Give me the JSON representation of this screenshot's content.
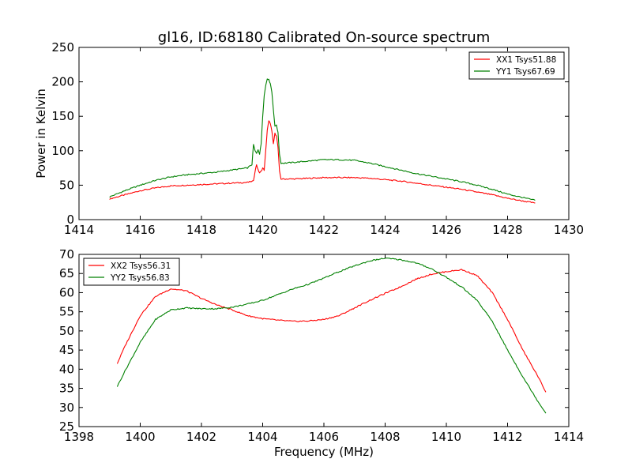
{
  "chart_data": [
    {
      "type": "line",
      "title": "gl16, ID:68180 Calibrated On-source spectrum",
      "xlabel": "",
      "ylabel": "Power in Kelvin",
      "xlim": [
        1414,
        1430
      ],
      "ylim": [
        0,
        250
      ],
      "xticks": [
        "1414",
        "1416",
        "1418",
        "1420",
        "1422",
        "1424",
        "1426",
        "1428",
        "1430"
      ],
      "yticks": [
        "0",
        "50",
        "100",
        "150",
        "200",
        "250"
      ],
      "legend_position": "top-right",
      "grid": false,
      "series": [
        {
          "name": "XX1 Tsys51.88",
          "color": "#ff0000",
          "x": [
            1415.0,
            1415.5,
            1416.0,
            1416.5,
            1417.0,
            1417.5,
            1418.0,
            1418.5,
            1419.0,
            1419.5,
            1419.7,
            1419.75,
            1419.8,
            1419.85,
            1419.9,
            1419.95,
            1420.0,
            1420.05,
            1420.1,
            1420.15,
            1420.2,
            1420.25,
            1420.3,
            1420.35,
            1420.4,
            1420.45,
            1420.5,
            1420.55,
            1420.6,
            1420.7,
            1421.0,
            1421.5,
            1422.0,
            1422.5,
            1423.0,
            1423.5,
            1424.0,
            1424.5,
            1425.0,
            1425.5,
            1426.0,
            1426.5,
            1427.0,
            1427.5,
            1428.0,
            1428.5,
            1428.9
          ],
          "values": [
            30,
            36,
            42,
            46,
            49,
            50,
            51,
            52,
            53,
            54,
            56,
            70,
            80,
            72,
            68,
            70,
            75,
            72,
            100,
            130,
            143,
            140,
            128,
            110,
            125,
            122,
            105,
            70,
            59,
            59,
            59,
            60,
            61,
            61,
            61,
            60,
            58,
            56,
            53,
            50,
            47,
            44,
            40,
            36,
            31,
            27,
            24
          ]
        },
        {
          "name": "YY1 Tsys67.69",
          "color": "#008000",
          "x": [
            1415.0,
            1415.5,
            1416.0,
            1416.5,
            1417.0,
            1417.5,
            1418.0,
            1418.5,
            1419.0,
            1419.5,
            1419.65,
            1419.7,
            1419.75,
            1419.8,
            1419.85,
            1419.9,
            1419.95,
            1420.0,
            1420.05,
            1420.1,
            1420.15,
            1420.2,
            1420.25,
            1420.3,
            1420.35,
            1420.4,
            1420.45,
            1420.5,
            1420.55,
            1420.6,
            1420.7,
            1421.0,
            1421.5,
            1422.0,
            1422.5,
            1423.0,
            1423.5,
            1424.0,
            1424.5,
            1425.0,
            1425.5,
            1426.0,
            1426.5,
            1427.0,
            1427.5,
            1428.0,
            1428.5,
            1428.9
          ],
          "values": [
            33,
            42,
            50,
            57,
            62,
            65,
            67,
            69,
            72,
            75,
            80,
            109,
            100,
            96,
            102,
            95,
            110,
            150,
            180,
            195,
            205,
            203,
            198,
            185,
            160,
            135,
            138,
            126,
            95,
            82,
            82,
            83,
            85,
            87,
            87,
            86,
            82,
            77,
            72,
            67,
            63,
            59,
            55,
            50,
            44,
            37,
            32,
            28
          ]
        }
      ]
    },
    {
      "type": "line",
      "title": "",
      "xlabel": "Frequency (MHz)",
      "ylabel": "",
      "xlim": [
        1398,
        1414
      ],
      "ylim": [
        25,
        70
      ],
      "xticks": [
        "1398",
        "1400",
        "1402",
        "1404",
        "1406",
        "1408",
        "1410",
        "1412",
        "1414"
      ],
      "yticks": [
        "25",
        "30",
        "35",
        "40",
        "45",
        "50",
        "55",
        "60",
        "65",
        "70"
      ],
      "legend_position": "top-left",
      "grid": false,
      "series": [
        {
          "name": "XX2 Tsys56.31",
          "color": "#ff0000",
          "x": [
            1399.25,
            1399.5,
            1400.0,
            1400.5,
            1401.0,
            1401.5,
            1402.0,
            1402.5,
            1403.0,
            1403.5,
            1404.0,
            1404.5,
            1405.0,
            1405.5,
            1406.0,
            1406.5,
            1407.0,
            1407.5,
            1408.0,
            1408.5,
            1409.0,
            1409.5,
            1410.0,
            1410.5,
            1411.0,
            1411.5,
            1412.0,
            1412.5,
            1413.0,
            1413.25
          ],
          "values": [
            41.5,
            46.0,
            54.0,
            59.0,
            61.0,
            60.5,
            58.5,
            56.8,
            55.5,
            54.0,
            53.2,
            52.8,
            52.5,
            52.6,
            53.0,
            54.0,
            56.0,
            58.0,
            59.8,
            61.5,
            63.5,
            64.8,
            65.5,
            66.0,
            64.5,
            60.0,
            53.0,
            45.0,
            38.0,
            34.0
          ]
        },
        {
          "name": "YY2 Tsys56.83",
          "color": "#008000",
          "x": [
            1399.25,
            1399.5,
            1400.0,
            1400.5,
            1401.0,
            1401.5,
            1402.0,
            1402.5,
            1403.0,
            1403.5,
            1404.0,
            1404.5,
            1405.0,
            1405.5,
            1406.0,
            1406.5,
            1407.0,
            1407.5,
            1408.0,
            1408.5,
            1409.0,
            1409.5,
            1410.0,
            1410.5,
            1411.0,
            1411.5,
            1412.0,
            1412.5,
            1413.0,
            1413.25
          ],
          "values": [
            35.5,
            39.5,
            47.0,
            53.0,
            55.5,
            56.0,
            55.8,
            55.8,
            56.2,
            57.0,
            58.0,
            59.5,
            61.0,
            62.2,
            63.8,
            65.5,
            67.0,
            68.3,
            69.0,
            68.6,
            67.8,
            66.3,
            64.0,
            61.5,
            58.0,
            52.5,
            45.0,
            38.0,
            31.5,
            28.5
          ]
        }
      ]
    }
  ]
}
